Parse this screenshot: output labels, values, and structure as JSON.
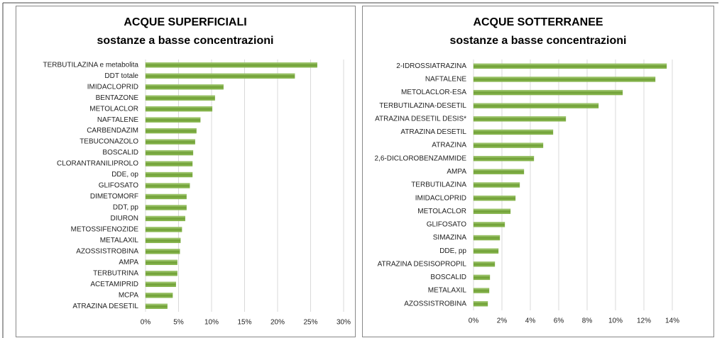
{
  "chart_data": [
    {
      "type": "bar",
      "orientation": "horizontal",
      "title": "ACQUE SUPERFICIALI",
      "subtitle": "sostanze a basse concentrazioni",
      "categories": [
        "TERBUTILAZINA e metabolita",
        "DDT totale",
        "IMIDACLOPRID",
        "BENTAZONE",
        "METOLACLOR",
        "NAFTALENE",
        "CARBENDAZIM",
        "TEBUCONAZOLO",
        "BOSCALID",
        "CLORANTRANILIPROLO",
        "DDE, op",
        "GLIFOSATO",
        "DIMETOMORF",
        "DDT, pp",
        "DIURON",
        "METOSSIFENOZIDE",
        "METALAXIL",
        "AZOSSISTROBINA",
        "AMPA",
        "TERBUTRINA",
        "ACETAMIPRID",
        "MCPA",
        "ATRAZINA DESETIL"
      ],
      "values": [
        26.0,
        22.6,
        11.8,
        10.5,
        10.1,
        8.3,
        7.7,
        7.5,
        7.2,
        7.1,
        7.1,
        6.7,
        6.2,
        6.2,
        6.0,
        5.5,
        5.3,
        5.2,
        4.8,
        4.8,
        4.6,
        4.1,
        3.3
      ],
      "color": "#7aab3e",
      "xlim": [
        0,
        30
      ],
      "xticks": [
        {
          "value": 0,
          "label": "0%"
        },
        {
          "value": 5,
          "label": "5%"
        },
        {
          "value": 10,
          "label": "10%"
        },
        {
          "value": 15,
          "label": "15%"
        },
        {
          "value": 20,
          "label": "20%"
        },
        {
          "value": 25,
          "label": "25%"
        },
        {
          "value": 30,
          "label": "30%"
        }
      ],
      "grid": true
    },
    {
      "type": "bar",
      "orientation": "horizontal",
      "title": "ACQUE SOTTERRANEE",
      "subtitle": "sostanze a basse concentrazioni",
      "categories": [
        "2-IDROSSIATRAZINA",
        "NAFTALENE",
        "METOLACLOR-ESA",
        "TERBUTILAZINA-DESETIL",
        "ATRAZINA DESETIL DESIS*",
        "ATRAZINA DESETIL",
        "ATRAZINA",
        "2,6-DICLOROBENZAMMIDE",
        "AMPA",
        "TERBUTILAZINA",
        "IMIDACLOPRID",
        "METOLACLOR",
        "GLIFOSATO",
        "SIMAZINA",
        "DDE, pp",
        "ATRAZINA DESISOPROPIL",
        "BOSCALID",
        "METALAXIL",
        "AZOSSISTROBINA"
      ],
      "values": [
        13.6,
        12.8,
        10.5,
        8.8,
        6.5,
        5.6,
        4.9,
        4.25,
        3.55,
        3.25,
        2.95,
        2.6,
        2.2,
        1.85,
        1.75,
        1.5,
        1.15,
        1.1,
        1.0
      ],
      "color": "#7aab3e",
      "xlim": [
        0,
        14
      ],
      "xticks": [
        {
          "value": 0,
          "label": "0%"
        },
        {
          "value": 2,
          "label": "2%"
        },
        {
          "value": 4,
          "label": "4%"
        },
        {
          "value": 6,
          "label": "6%"
        },
        {
          "value": 8,
          "label": "8%"
        },
        {
          "value": 10,
          "label": "10%"
        },
        {
          "value": 12,
          "label": "12%"
        },
        {
          "value": 14,
          "label": "14%"
        }
      ],
      "grid": true
    }
  ]
}
